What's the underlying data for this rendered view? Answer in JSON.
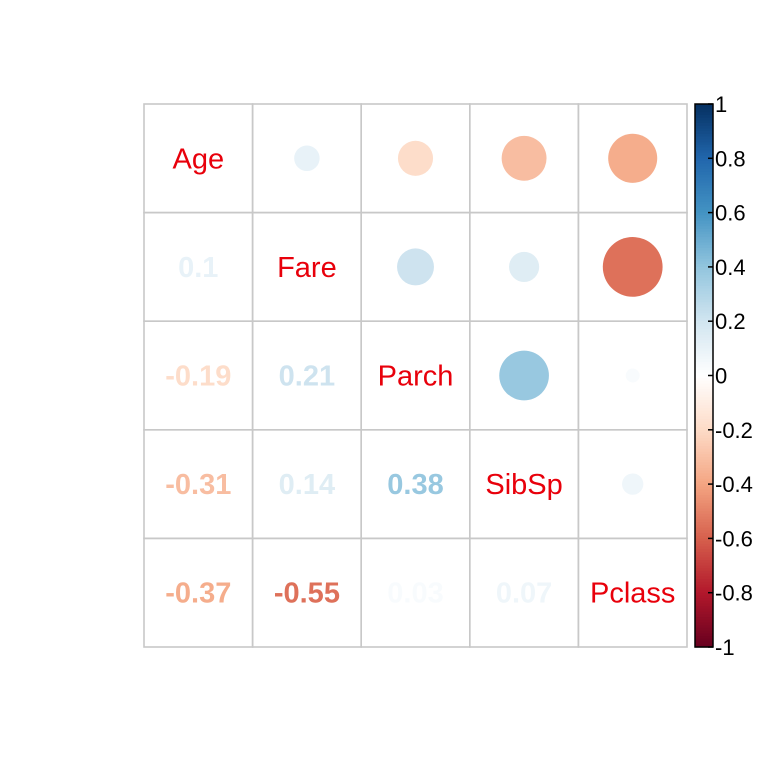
{
  "chart_data": {
    "type": "heatmap",
    "subtype": "correlation-matrix",
    "upper_method": "circle",
    "lower_method": "number",
    "variables": [
      "Age",
      "Fare",
      "Parch",
      "SibSp",
      "Pclass"
    ],
    "matrix": [
      [
        1.0,
        0.1,
        -0.19,
        -0.31,
        -0.37
      ],
      [
        0.1,
        1.0,
        0.21,
        0.14,
        -0.55
      ],
      [
        -0.19,
        0.21,
        1.0,
        0.38,
        0.03
      ],
      [
        -0.31,
        0.14,
        0.38,
        1.0,
        0.07
      ],
      [
        -0.37,
        -0.55,
        0.03,
        0.07,
        1.0
      ]
    ],
    "lower_labels": [
      [
        "",
        "",
        "",
        "",
        ""
      ],
      [
        "0.1",
        "",
        "",
        "",
        ""
      ],
      [
        "-0.19",
        "0.21",
        "",
        "",
        ""
      ],
      [
        "-0.31",
        "0.14",
        "0.38",
        "",
        ""
      ],
      [
        "-0.37",
        "-0.55",
        "0.03",
        "0.07",
        ""
      ]
    ],
    "colorbar": {
      "range": [
        -1,
        1
      ],
      "ticks": [
        1,
        0.8,
        0.6,
        0.4,
        0.2,
        0,
        -0.2,
        -0.4,
        -0.6,
        -0.8,
        -1
      ],
      "tick_labels": [
        "1",
        "0.8",
        "0.6",
        "0.4",
        "0.2",
        "0",
        "-0.2",
        "-0.4",
        "-0.6",
        "-0.8",
        "-1"
      ],
      "placement": "right"
    },
    "colors": {
      "negative_end": "#67001f",
      "positive_end": "#053061",
      "label": "#e8000b",
      "grid": "#c8c8c8"
    },
    "grid": true
  }
}
